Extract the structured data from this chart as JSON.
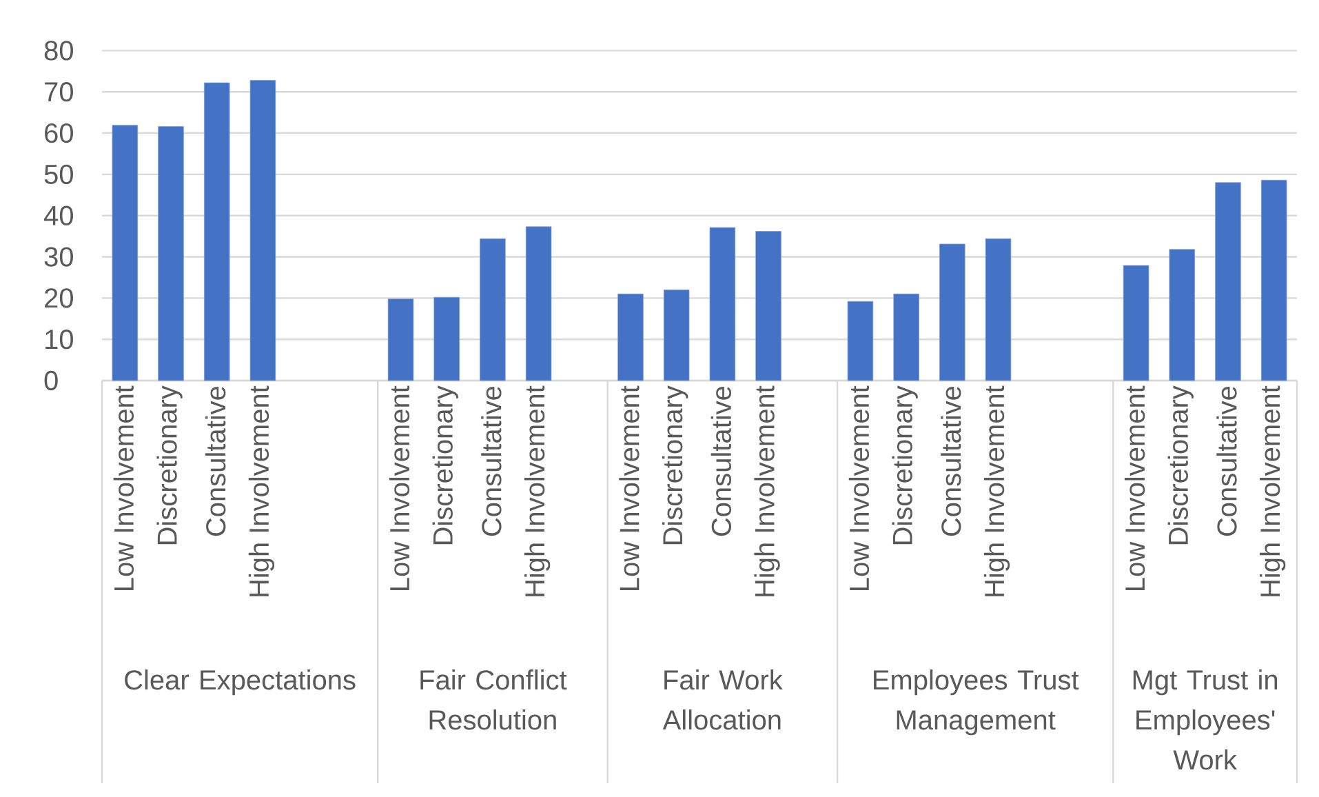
{
  "chart_data": {
    "type": "bar",
    "color": "#4472c4",
    "grid": "y",
    "ylim": [
      0,
      80
    ],
    "yticks": [
      0,
      10,
      20,
      30,
      40,
      50,
      60,
      70,
      80
    ],
    "categories": [
      "Low Involvement",
      "Discretionary",
      "Consultative",
      "High Involvement",
      null,
      null,
      "Low Involvement",
      "Discretionary",
      "Consultative",
      "High Involvement",
      null,
      "Low Involvement",
      "Discretionary",
      "Consultative",
      "High Involvement",
      null,
      "Low Involvement",
      "Discretionary",
      "Consultative",
      "High Involvement",
      null,
      null,
      "Low Involvement",
      "Discretionary",
      "Consultative",
      "High Involvement"
    ],
    "values": [
      61.9,
      61.6,
      72.2,
      72.8,
      null,
      null,
      19.8,
      20.2,
      34.4,
      37.3,
      null,
      21.0,
      22.0,
      37.1,
      36.2,
      null,
      19.2,
      21.0,
      33.1,
      34.4,
      null,
      null,
      27.9,
      31.8,
      48.0,
      48.6
    ],
    "annotations": [
      "Clear Expectations",
      "Fair Conflict Resolution",
      "Fair Work Allocation",
      "Employees Trust Management",
      "Mgt Trust in Employees' Work"
    ]
  }
}
